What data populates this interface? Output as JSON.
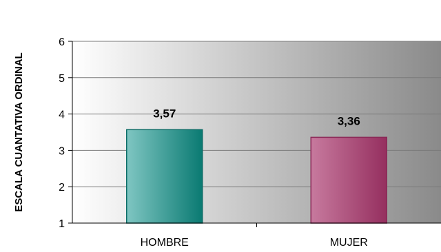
{
  "chart_data": {
    "type": "bar",
    "categories": [
      "HOMBRE",
      "MUJER"
    ],
    "values": [
      3.57,
      3.36
    ],
    "data_labels": [
      "3,57",
      "3,36"
    ],
    "title": "",
    "xlabel": "",
    "ylabel": "ESCALA CUANTATIVA ORDINAL",
    "ylim": [
      1,
      6
    ],
    "yticks": [
      "1",
      "2",
      "3",
      "4",
      "5",
      "6"
    ],
    "grid": true,
    "legend": "none",
    "bar_colors": [
      [
        "#7fc6c2",
        "#0a7a72"
      ],
      [
        "#c77a9e",
        "#952f5f"
      ]
    ],
    "bar_borders": [
      "#0e6e68",
      "#8a2a57"
    ],
    "plot_background": [
      "#ffffff",
      "#8a8a8a"
    ]
  }
}
